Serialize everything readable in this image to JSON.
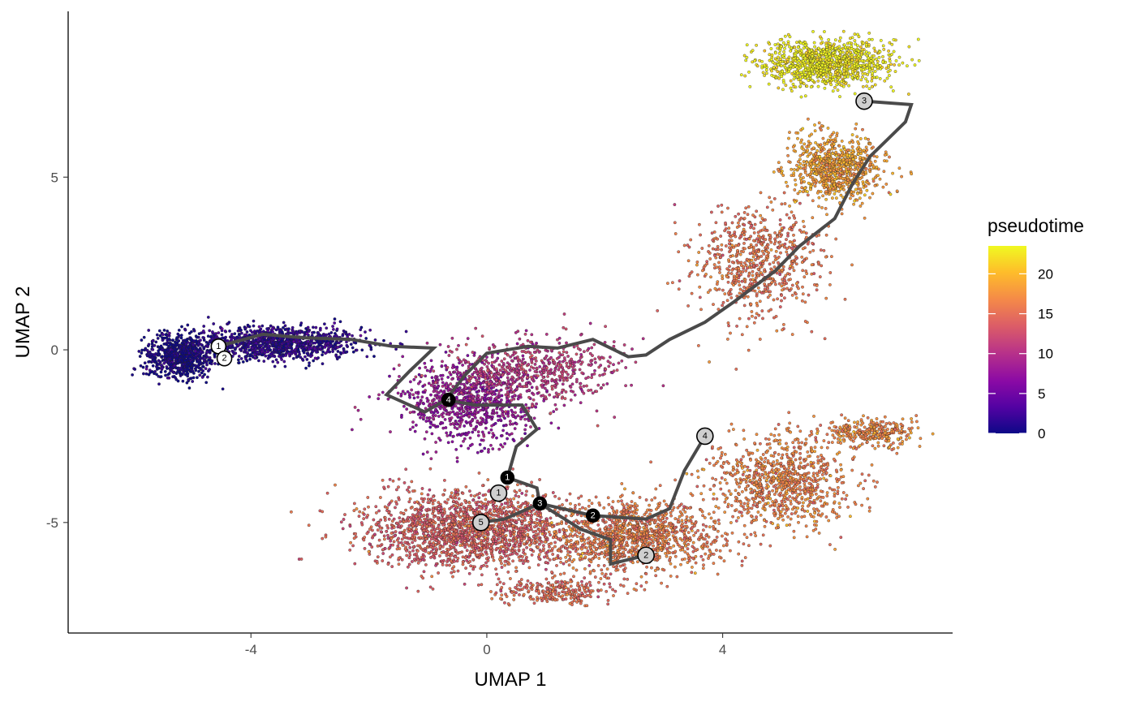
{
  "chart_data": {
    "type": "scatter",
    "xlabel": "UMAP 1",
    "ylabel": "UMAP 2",
    "xlim": [
      -7.1,
      7.9
    ],
    "ylim": [
      -8.2,
      9.8
    ],
    "x_ticks": [
      -4,
      0,
      4
    ],
    "y_ticks": [
      -5,
      0,
      5
    ],
    "grid": false,
    "legend": {
      "title": "pseudotime",
      "position": "right",
      "range": [
        0,
        23.5
      ],
      "ticks": [
        0,
        5,
        10,
        15,
        20
      ],
      "colormap": [
        "#0d0887",
        "#5302a3",
        "#8b0aa5",
        "#b83289",
        "#db5c68",
        "#f48849",
        "#febd2a",
        "#f0f921"
      ]
    },
    "point_clusters": [
      {
        "name": "left_arm",
        "cx": -3.6,
        "cy": 0.2,
        "sx": 1.35,
        "sy": 0.45,
        "n": 1100,
        "pt": 1.5
      },
      {
        "name": "left_dense",
        "cx": -5.2,
        "cy": -0.2,
        "sx": 0.55,
        "sy": 0.55,
        "n": 700,
        "pt": 0.3
      },
      {
        "name": "center_upper",
        "cx": -0.3,
        "cy": -1.5,
        "sx": 1.0,
        "sy": 1.0,
        "n": 900,
        "pt": 7.5
      },
      {
        "name": "center_mid",
        "cx": 0.8,
        "cy": -0.6,
        "sx": 1.3,
        "sy": 0.9,
        "n": 600,
        "pt": 11.0
      },
      {
        "name": "lower_left",
        "cx": -0.3,
        "cy": -5.2,
        "sx": 1.6,
        "sy": 1.0,
        "n": 1800,
        "pt": 14.0
      },
      {
        "name": "lower_mid",
        "cx": 2.5,
        "cy": -5.4,
        "sx": 1.3,
        "sy": 0.9,
        "n": 1200,
        "pt": 16.0
      },
      {
        "name": "lower_right",
        "cx": 5.0,
        "cy": -3.8,
        "sx": 1.1,
        "sy": 1.2,
        "n": 900,
        "pt": 16.5
      },
      {
        "name": "right_tail",
        "cx": 6.5,
        "cy": -2.4,
        "sx": 0.7,
        "sy": 0.35,
        "n": 300,
        "pt": 17.0
      },
      {
        "name": "bottom",
        "cx": 1.2,
        "cy": -7.0,
        "sx": 0.9,
        "sy": 0.3,
        "n": 250,
        "pt": 15.0
      },
      {
        "name": "diag_arm",
        "cx": 4.6,
        "cy": 2.5,
        "sx": 1.0,
        "sy": 1.5,
        "n": 700,
        "pt": 15.5
      },
      {
        "name": "upper_arm",
        "cx": 5.9,
        "cy": 5.3,
        "sx": 0.7,
        "sy": 0.9,
        "n": 800,
        "pt": 18.5
      },
      {
        "name": "top_arc",
        "cx": 5.8,
        "cy": 8.3,
        "sx": 1.0,
        "sy": 0.6,
        "n": 1000,
        "pt": 23.0
      }
    ],
    "trajectory": [
      [
        [
          -4.55,
          0.1
        ],
        [
          -3.8,
          0.45
        ],
        [
          -3.1,
          0.35
        ],
        [
          -2.3,
          0.3
        ],
        [
          -1.6,
          0.1
        ],
        [
          -0.9,
          0.05
        ],
        [
          -1.3,
          -0.6
        ],
        [
          -1.7,
          -1.3
        ],
        [
          -1.05,
          -1.8
        ],
        [
          -0.7,
          -1.45
        ],
        [
          -0.2,
          -1.6
        ],
        [
          0.6,
          -1.6
        ],
        [
          0.85,
          -2.3
        ],
        [
          0.5,
          -2.8
        ],
        [
          0.35,
          -3.7
        ],
        [
          0.85,
          -4.0
        ],
        [
          0.9,
          -4.45
        ],
        [
          1.8,
          -4.8
        ],
        [
          2.7,
          -4.9
        ],
        [
          3.1,
          -4.6
        ],
        [
          3.35,
          -3.5
        ],
        [
          3.7,
          -2.5
        ]
      ],
      [
        [
          0.9,
          -4.45
        ],
        [
          1.6,
          -5.2
        ],
        [
          2.1,
          -5.5
        ],
        [
          2.1,
          -6.2
        ],
        [
          2.7,
          -5.95
        ]
      ],
      [
        [
          -0.1,
          -5.0
        ],
        [
          0.3,
          -4.9
        ],
        [
          0.9,
          -4.45
        ]
      ],
      [
        [
          -0.7,
          -1.45
        ],
        [
          -0.35,
          -0.7
        ],
        [
          0.0,
          -0.1
        ],
        [
          0.7,
          0.1
        ],
        [
          1.2,
          0.05
        ],
        [
          1.8,
          0.3
        ],
        [
          2.4,
          -0.2
        ],
        [
          2.7,
          -0.15
        ],
        [
          3.1,
          0.3
        ],
        [
          3.7,
          0.8
        ],
        [
          4.2,
          1.4
        ],
        [
          4.9,
          2.3
        ],
        [
          5.3,
          3.0
        ],
        [
          5.9,
          3.8
        ],
        [
          6.2,
          4.8
        ],
        [
          6.5,
          5.6
        ],
        [
          6.8,
          6.1
        ],
        [
          7.1,
          6.6
        ],
        [
          7.2,
          7.1
        ],
        [
          6.4,
          7.2
        ]
      ]
    ],
    "nodes": [
      {
        "x": -4.55,
        "y": 0.1,
        "label": "1",
        "style": "white"
      },
      {
        "x": -4.45,
        "y": -0.25,
        "label": "2",
        "style": "white"
      },
      {
        "x": -0.65,
        "y": -1.45,
        "label": "4",
        "style": "black"
      },
      {
        "x": 0.35,
        "y": -3.7,
        "label": "1",
        "style": "black"
      },
      {
        "x": 0.2,
        "y": -4.15,
        "label": "1",
        "style": "grey"
      },
      {
        "x": 0.9,
        "y": -4.45,
        "label": "3",
        "style": "black"
      },
      {
        "x": 1.8,
        "y": -4.8,
        "label": "2",
        "style": "black"
      },
      {
        "x": -0.1,
        "y": -5.0,
        "label": "5",
        "style": "grey"
      },
      {
        "x": 2.7,
        "y": -5.95,
        "label": "2",
        "style": "grey"
      },
      {
        "x": 3.7,
        "y": -2.5,
        "label": "4",
        "style": "grey"
      },
      {
        "x": 6.4,
        "y": 7.2,
        "label": "3",
        "style": "grey"
      }
    ]
  }
}
